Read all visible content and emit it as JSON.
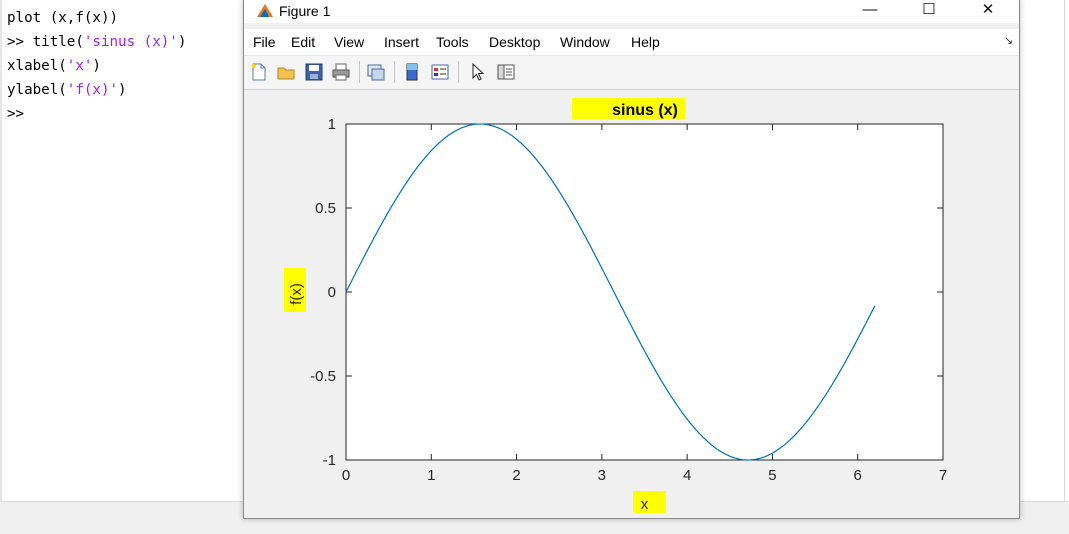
{
  "command_window": {
    "lines": [
      {
        "parts": [
          {
            "t": "plot (x,f(x))",
            "s": false
          }
        ]
      },
      {
        "parts": [
          {
            "t": ">> title(",
            "s": false
          },
          {
            "t": "'sinus (x)'",
            "s": true
          },
          {
            "t": ")",
            "s": false
          }
        ]
      },
      {
        "parts": [
          {
            "t": "xlabel(",
            "s": false
          },
          {
            "t": "'x'",
            "s": true
          },
          {
            "t": ")",
            "s": false
          }
        ]
      },
      {
        "parts": [
          {
            "t": "ylabel(",
            "s": false
          },
          {
            "t": "'f(x)'",
            "s": true
          },
          {
            "t": ")",
            "s": false
          }
        ]
      },
      {
        "parts": [
          {
            "t": ">>",
            "s": false
          }
        ]
      }
    ]
  },
  "figure": {
    "window_title": "Figure 1",
    "window_buttons": {
      "minimize": "—",
      "maximize": "☐",
      "close": "✕"
    },
    "menu": [
      "File",
      "Edit",
      "View",
      "Insert",
      "Tools",
      "Desktop",
      "Window",
      "Help"
    ],
    "menu_overflow": "↘",
    "toolbar_icons": [
      "new-figure-icon",
      "open-file-icon",
      "save-icon",
      "print-icon",
      "link-plot-icon",
      "colorbar-icon",
      "legend-icon",
      "edit-plot-icon",
      "property-inspector-icon"
    ],
    "highlight_color": "#ffff00",
    "line_color": "#0072bd"
  },
  "chart_data": {
    "type": "line",
    "title": "sinus (x)",
    "xlabel": "x",
    "ylabel": "f(x)",
    "xlim": [
      0,
      7
    ],
    "ylim": [
      -1,
      1
    ],
    "xticks": [
      0,
      1,
      2,
      3,
      4,
      5,
      6,
      7
    ],
    "yticks": [
      -1,
      -0.5,
      0,
      0.5,
      1
    ],
    "xtick_labels": [
      "0",
      "1",
      "2",
      "3",
      "4",
      "5",
      "6",
      "7"
    ],
    "ytick_labels": [
      "-1",
      "-0.5",
      "0",
      "0.5",
      "1"
    ],
    "grid": false,
    "series": [
      {
        "function": "sin(x)",
        "x_range": [
          0,
          6.2
        ],
        "step": 0.05
      }
    ]
  }
}
